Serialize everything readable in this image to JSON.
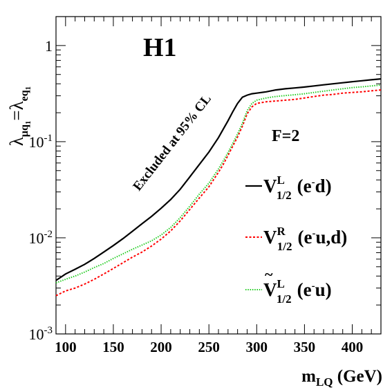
{
  "chart_data": {
    "type": "line",
    "experiment": "H1",
    "annotation": "Excluded at 95% CL",
    "fermion_number": "F=2",
    "xlabel": {
      "base": "m",
      "sub": "LQ",
      "unit": "(GeV)"
    },
    "ylabel": {
      "lambda": "λ",
      "sub_mu": "μq",
      "sub_e": "eq",
      "sub_index": "1",
      "equals": "="
    },
    "xlim": [
      90,
      430
    ],
    "ylim": [
      0.001,
      2
    ],
    "y_scale": "log",
    "x_ticks": [
      100,
      150,
      200,
      250,
      300,
      350,
      400
    ],
    "y_ticks": [
      {
        "value": 1,
        "label": "1",
        "exp": ""
      },
      {
        "value": 0.1,
        "label": "10",
        "exp": "-1"
      },
      {
        "value": 0.01,
        "label": "10",
        "exp": "-2"
      },
      {
        "value": 0.001,
        "label": "10",
        "exp": "-3"
      }
    ],
    "legend_placement": "right",
    "series": [
      {
        "name_main": "V",
        "name_sup": "L",
        "name_sub": "1/2",
        "name_tilde": false,
        "name_process": "(e",
        "name_process_sup": "-",
        "name_process_tail": "d)",
        "color": "#000000",
        "dash": "none",
        "width": 2.2,
        "x": [
          90,
          100,
          110,
          120,
          130,
          140,
          150,
          160,
          170,
          180,
          190,
          200,
          210,
          220,
          230,
          240,
          250,
          260,
          265,
          270,
          275,
          280,
          285,
          290,
          295,
          300,
          310,
          320,
          330,
          340,
          350,
          360,
          370,
          380,
          390,
          400,
          410,
          420,
          430
        ],
        "y": [
          0.0036,
          0.0042,
          0.0047,
          0.0053,
          0.0061,
          0.0071,
          0.0083,
          0.0098,
          0.0117,
          0.014,
          0.0167,
          0.0203,
          0.025,
          0.032,
          0.043,
          0.058,
          0.078,
          0.11,
          0.135,
          0.165,
          0.205,
          0.25,
          0.29,
          0.305,
          0.315,
          0.32,
          0.33,
          0.345,
          0.355,
          0.362,
          0.37,
          0.38,
          0.39,
          0.4,
          0.41,
          0.42,
          0.43,
          0.44,
          0.45
        ]
      },
      {
        "name_main": "V",
        "name_sup": "R",
        "name_sub": "1/2",
        "name_tilde": false,
        "name_process": "(e",
        "name_process_sup": "-",
        "name_process_tail": "u,d)",
        "color": "#ff0000",
        "dash": "3,2.5",
        "width": 2,
        "x": [
          90,
          100,
          110,
          120,
          130,
          140,
          150,
          160,
          170,
          180,
          190,
          200,
          210,
          220,
          230,
          240,
          250,
          260,
          265,
          270,
          275,
          280,
          285,
          290,
          295,
          300,
          310,
          320,
          330,
          340,
          350,
          360,
          370,
          380,
          390,
          400,
          410,
          420,
          430
        ],
        "y": [
          0.0025,
          0.0028,
          0.003,
          0.0033,
          0.0037,
          0.0042,
          0.0048,
          0.0055,
          0.0063,
          0.0071,
          0.0082,
          0.0097,
          0.0118,
          0.015,
          0.0197,
          0.026,
          0.034,
          0.048,
          0.058,
          0.072,
          0.09,
          0.112,
          0.145,
          0.195,
          0.23,
          0.25,
          0.26,
          0.265,
          0.27,
          0.275,
          0.285,
          0.295,
          0.305,
          0.31,
          0.32,
          0.325,
          0.33,
          0.338,
          0.345
        ]
      },
      {
        "name_main": "V",
        "name_sup": "L",
        "name_sub": "1/2",
        "name_tilde": true,
        "name_process": "(e",
        "name_process_sup": "-",
        "name_process_tail": "u)",
        "color": "#22cc22",
        "dash": "1.5,1.8",
        "width": 2,
        "x": [
          90,
          100,
          110,
          120,
          130,
          140,
          150,
          160,
          170,
          180,
          190,
          200,
          210,
          220,
          230,
          240,
          250,
          260,
          265,
          270,
          275,
          280,
          285,
          290,
          295,
          300,
          310,
          320,
          330,
          340,
          350,
          360,
          370,
          380,
          390,
          400,
          410,
          420,
          430
        ],
        "y": [
          0.0034,
          0.0037,
          0.004,
          0.0044,
          0.0049,
          0.0054,
          0.0061,
          0.0068,
          0.0076,
          0.0084,
          0.0093,
          0.0107,
          0.0128,
          0.0162,
          0.0213,
          0.0285,
          0.037,
          0.052,
          0.063,
          0.077,
          0.096,
          0.12,
          0.155,
          0.21,
          0.25,
          0.27,
          0.285,
          0.295,
          0.302,
          0.308,
          0.315,
          0.325,
          0.335,
          0.345,
          0.355,
          0.365,
          0.372,
          0.38,
          0.388
        ]
      }
    ]
  }
}
